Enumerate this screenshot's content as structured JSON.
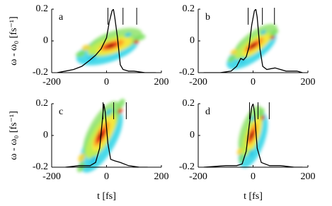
{
  "chart_data": [
    {
      "type": "spectrogram",
      "label": "a",
      "y_label": "ω - ω₀ [fs⁻¹]",
      "xlim": [
        -200,
        200
      ],
      "ylim": [
        -0.2,
        0.2
      ],
      "xticks": [
        -200,
        0,
        200
      ],
      "yticks": [
        -0.2,
        0,
        0.2
      ],
      "markers": [
        5,
        60,
        110
      ],
      "curve": {
        "color": "#000000",
        "x": [
          -180,
          -150,
          -120,
          -90,
          -60,
          -40,
          -20,
          0,
          10,
          20,
          25,
          30,
          40,
          50,
          60,
          80,
          100,
          140,
          180
        ],
        "values": [
          -0.2,
          -0.19,
          -0.18,
          -0.16,
          -0.12,
          -0.09,
          -0.05,
          0.02,
          0.12,
          0.19,
          0.2,
          0.15,
          0.02,
          -0.15,
          -0.18,
          -0.19,
          -0.19,
          -0.2,
          -0.2
        ]
      }
    },
    {
      "type": "spectrogram",
      "label": "b",
      "xlim": [
        -200,
        200
      ],
      "ylim": [
        -0.2,
        0.2
      ],
      "xticks": [
        -200,
        0,
        200
      ],
      "yticks": [
        -0.2,
        0,
        0.2
      ],
      "markers": [
        -18,
        34,
        78
      ],
      "curve": {
        "color": "#000000",
        "x": [
          -180,
          -120,
          -80,
          -60,
          -45,
          -35,
          -25,
          -15,
          -5,
          5,
          10,
          15,
          25,
          35,
          50,
          80,
          120,
          160,
          180
        ],
        "values": [
          -0.2,
          -0.2,
          -0.19,
          -0.16,
          -0.11,
          -0.12,
          -0.1,
          -0.04,
          0.1,
          0.19,
          0.2,
          0.15,
          -0.05,
          -0.16,
          -0.18,
          -0.17,
          -0.19,
          -0.19,
          -0.2
        ]
      }
    },
    {
      "type": "spectrogram",
      "label": "c",
      "y_label": "ω - ω₀ [fs⁻¹]",
      "x_label": "t [fs]",
      "xlim": [
        -200,
        200
      ],
      "ylim": [
        -0.2,
        0.2
      ],
      "xticks": [
        -200,
        0,
        200
      ],
      "yticks": [
        -0.2,
        0,
        0.2
      ],
      "markers": [
        -13,
        26,
        72
      ],
      "curve": {
        "color": "#000000",
        "x": [
          -150,
          -100,
          -60,
          -40,
          -25,
          -15,
          -10,
          -5,
          5,
          15,
          30,
          50,
          80,
          120,
          150
        ],
        "values": [
          -0.2,
          -0.19,
          -0.19,
          -0.17,
          -0.08,
          0.1,
          0.2,
          0.15,
          -0.05,
          -0.15,
          -0.16,
          -0.17,
          -0.19,
          -0.2,
          -0.2
        ]
      }
    },
    {
      "type": "spectrogram",
      "label": "d",
      "x_label": "t [fs]",
      "xlim": [
        -200,
        200
      ],
      "ylim": [
        -0.2,
        0.2
      ],
      "xticks": [
        -200,
        0,
        200
      ],
      "yticks": [
        -0.2,
        0,
        0.2
      ],
      "markers": [
        -13,
        18,
        59
      ],
      "curve": {
        "color": "#000000",
        "x": [
          -180,
          -100,
          -60,
          -40,
          -25,
          -15,
          -5,
          0,
          5,
          15,
          30,
          60,
          100,
          150,
          180
        ],
        "values": [
          -0.2,
          -0.19,
          -0.19,
          -0.18,
          -0.1,
          0.05,
          0.18,
          0.2,
          0.15,
          -0.08,
          -0.17,
          -0.19,
          -0.19,
          -0.2,
          -0.2
        ]
      }
    }
  ]
}
